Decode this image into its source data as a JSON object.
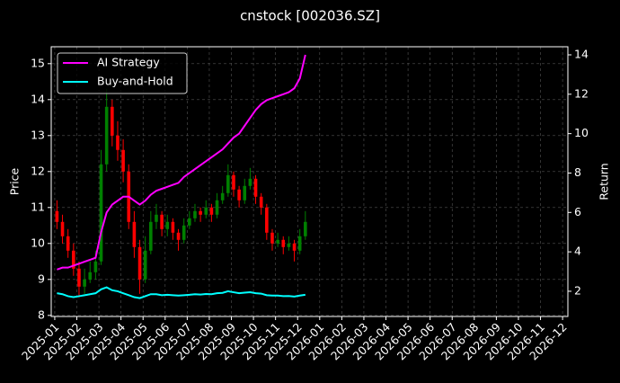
{
  "chart_data": {
    "type": "candlestick",
    "title": "cnstock [002036.SZ]",
    "ylabel": "Price",
    "y2label": "Return",
    "x": [
      0.1,
      0.35,
      0.6,
      0.85,
      1.1,
      1.35,
      1.6,
      1.85,
      2.1,
      2.35,
      2.6,
      2.85,
      3.1,
      3.35,
      3.6,
      3.85,
      4.1,
      4.35,
      4.6,
      4.85,
      5.1,
      5.35,
      5.6,
      5.85,
      6.1,
      6.35,
      6.6,
      6.85,
      7.1,
      7.35,
      7.6,
      7.85,
      8.1,
      8.35,
      8.6,
      8.85,
      9.1,
      9.35,
      9.6,
      9.85,
      10.1,
      10.35,
      10.6,
      10.85,
      11.1,
      11.35
    ],
    "xlim": [
      -0.16,
      23.24
    ],
    "xticks": [
      {
        "value": 0,
        "label": "2025-01"
      },
      {
        "value": 1,
        "label": "2025-02"
      },
      {
        "value": 2,
        "label": "2025-03"
      },
      {
        "value": 3,
        "label": "2025-04"
      },
      {
        "value": 4,
        "label": "2025-05"
      },
      {
        "value": 5,
        "label": "2025-06"
      },
      {
        "value": 6,
        "label": "2025-07"
      },
      {
        "value": 7,
        "label": "2025-08"
      },
      {
        "value": 8,
        "label": "2025-09"
      },
      {
        "value": 9,
        "label": "2025-10"
      },
      {
        "value": 10,
        "label": "2025-11"
      },
      {
        "value": 11,
        "label": "2025-12"
      },
      {
        "value": 12,
        "label": "2026-01"
      },
      {
        "value": 13,
        "label": "2026-02"
      },
      {
        "value": 14,
        "label": "2026-03"
      },
      {
        "value": 15,
        "label": "2026-04"
      },
      {
        "value": 16,
        "label": "2026-05"
      },
      {
        "value": 17,
        "label": "2026-06"
      },
      {
        "value": 18,
        "label": "2026-07"
      },
      {
        "value": 19,
        "label": "2026-08"
      },
      {
        "value": 20,
        "label": "2026-09"
      },
      {
        "value": 21,
        "label": "2026-10"
      },
      {
        "value": 22,
        "label": "2026-11"
      },
      {
        "value": 23,
        "label": "2026-12"
      }
    ],
    "ylim": [
      7.97,
      15.47
    ],
    "yticks": [
      8,
      9,
      10,
      11,
      12,
      13,
      14,
      15
    ],
    "y2lim": [
      0.72,
      14.41
    ],
    "y2ticks": [
      2,
      4,
      6,
      8,
      10,
      12,
      14
    ],
    "grid": true,
    "legend": "upper left",
    "candles": {
      "up_color": "#008000",
      "down_color": "#ff0000",
      "open": [
        10.9,
        10.6,
        10.2,
        9.8,
        9.3,
        8.8,
        9.0,
        9.2,
        9.5,
        12.2,
        13.8,
        13.0,
        12.6,
        12.0,
        10.6,
        9.9,
        9.0,
        9.8,
        10.6,
        10.8,
        10.4,
        10.6,
        10.3,
        10.1,
        10.5,
        10.7,
        10.9,
        10.8,
        11.0,
        10.8,
        11.2,
        11.4,
        11.9,
        11.5,
        11.2,
        11.6,
        11.8,
        11.3,
        11.0,
        10.3,
        10.0,
        10.1,
        9.9,
        10.0,
        9.8,
        10.2
      ],
      "high": [
        11.2,
        10.8,
        10.4,
        10.0,
        9.5,
        9.3,
        9.5,
        9.8,
        12.6,
        14.3,
        14.0,
        13.4,
        12.9,
        12.2,
        10.9,
        10.1,
        10.2,
        10.9,
        11.1,
        10.9,
        10.8,
        10.7,
        10.4,
        10.7,
        10.9,
        11.1,
        11.0,
        11.2,
        11.1,
        11.4,
        11.6,
        12.2,
        12.0,
        11.6,
        11.8,
        12.1,
        11.9,
        11.4,
        11.1,
        10.4,
        10.3,
        10.2,
        10.2,
        10.1,
        10.4,
        10.9
      ],
      "low": [
        10.4,
        10.0,
        9.6,
        9.1,
        8.5,
        8.6,
        8.9,
        9.0,
        9.4,
        12.0,
        12.7,
        12.3,
        11.7,
        10.4,
        9.6,
        8.6,
        8.9,
        9.7,
        10.4,
        10.2,
        10.2,
        10.1,
        9.8,
        10.0,
        10.4,
        10.6,
        10.6,
        10.7,
        10.6,
        10.7,
        11.1,
        11.3,
        11.3,
        11.0,
        11.1,
        11.5,
        11.1,
        10.8,
        10.1,
        9.8,
        9.9,
        9.7,
        9.8,
        9.5,
        9.7,
        10.1
      ],
      "close": [
        10.6,
        10.2,
        9.8,
        9.3,
        8.8,
        9.0,
        9.2,
        9.5,
        12.2,
        13.8,
        13.0,
        12.6,
        12.0,
        10.6,
        9.9,
        9.0,
        9.8,
        10.6,
        10.8,
        10.4,
        10.6,
        10.3,
        10.1,
        10.5,
        10.7,
        10.9,
        10.8,
        11.0,
        10.8,
        11.2,
        11.4,
        11.9,
        11.5,
        11.2,
        11.6,
        11.8,
        11.3,
        11.0,
        10.3,
        10.0,
        10.1,
        9.9,
        10.0,
        9.8,
        10.2,
        10.6
      ]
    },
    "series": [
      {
        "name": "AI Strategy",
        "color": "#ff00ff",
        "axis": "y2",
        "values": [
          3.1,
          3.2,
          3.2,
          3.3,
          3.4,
          3.5,
          3.6,
          3.7,
          5.0,
          6.0,
          6.4,
          6.6,
          6.8,
          6.8,
          6.6,
          6.4,
          6.6,
          6.9,
          7.1,
          7.2,
          7.3,
          7.4,
          7.5,
          7.8,
          8.0,
          8.2,
          8.4,
          8.6,
          8.8,
          9.0,
          9.2,
          9.5,
          9.8,
          10.0,
          10.4,
          10.8,
          11.2,
          11.5,
          11.7,
          11.8,
          11.9,
          12.0,
          12.1,
          12.3,
          12.8,
          14.0
        ]
      },
      {
        "name": "Buy-and-Hold",
        "color": "#00ffff",
        "axis": "y2",
        "values": [
          1.9,
          1.85,
          1.75,
          1.7,
          1.75,
          1.8,
          1.85,
          1.9,
          2.1,
          2.2,
          2.05,
          2.0,
          1.9,
          1.8,
          1.7,
          1.65,
          1.75,
          1.85,
          1.85,
          1.8,
          1.82,
          1.8,
          1.78,
          1.8,
          1.82,
          1.85,
          1.83,
          1.86,
          1.85,
          1.9,
          1.92,
          2.0,
          1.95,
          1.9,
          1.93,
          1.95,
          1.9,
          1.88,
          1.8,
          1.78,
          1.78,
          1.75,
          1.76,
          1.73,
          1.78,
          1.82
        ]
      }
    ]
  }
}
